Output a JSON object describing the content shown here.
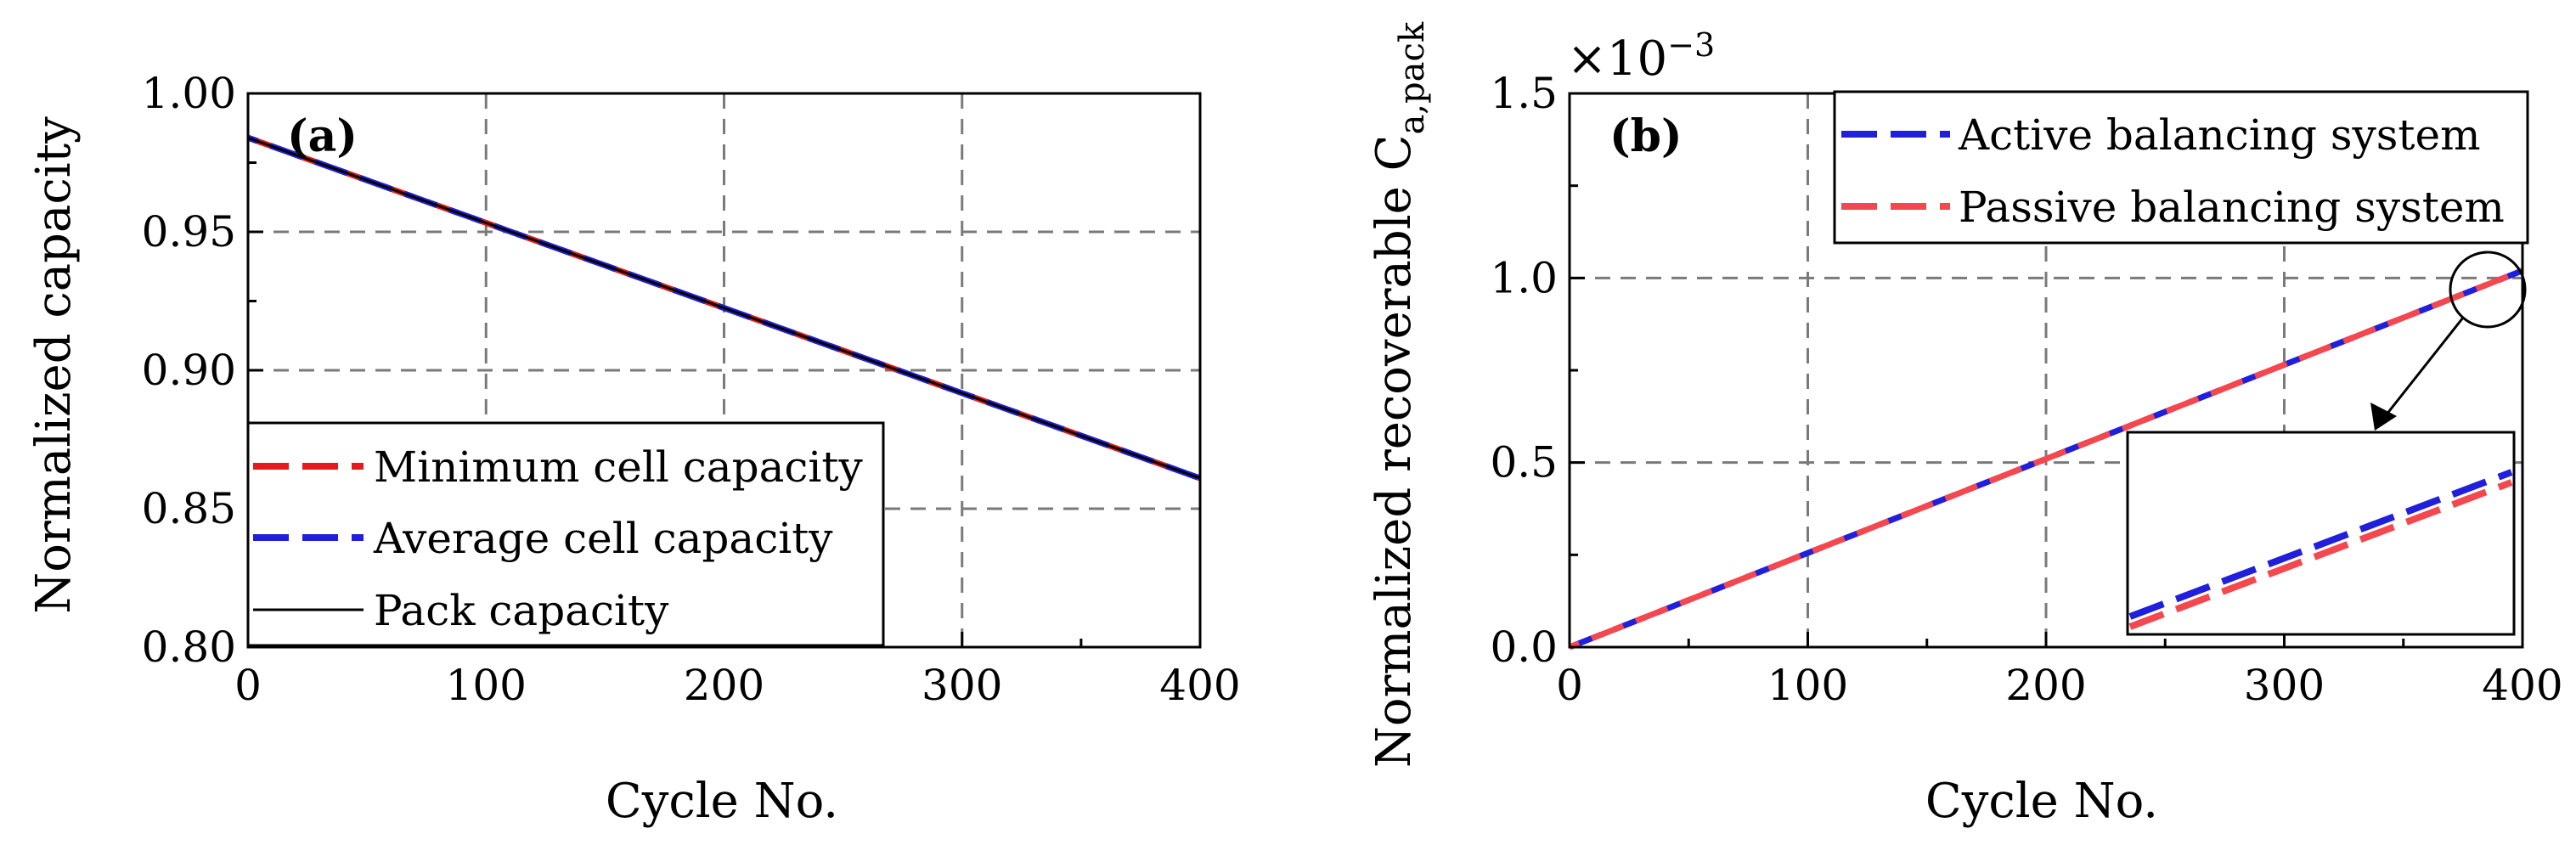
{
  "colors": {
    "red": "#e41a1c",
    "blue": "#1f1fdc",
    "pink": "#f4474e",
    "black": "#000000"
  },
  "chart_data": [
    {
      "type": "line",
      "panel_label": "(a)",
      "panel_letter": "a",
      "xlabel": "Cycle No.",
      "ylabel": "Normalized capacity",
      "xlim": [
        0,
        400
      ],
      "ylim": [
        0.8,
        1.0
      ],
      "xticks": [
        "0",
        "100",
        "200",
        "300",
        "400"
      ],
      "yticks": [
        "0.80",
        "0.85",
        "0.90",
        "0.95",
        "1.00"
      ],
      "grid": true,
      "legend_position": "bottom-left",
      "x": [
        0,
        400
      ],
      "series": [
        {
          "name": "Minimum cell capacity",
          "style": "dashed",
          "color": "red",
          "values": [
            0.984,
            0.861
          ]
        },
        {
          "name": "Average cell capacity",
          "style": "dashed",
          "color": "blue",
          "values": [
            0.984,
            0.861
          ]
        },
        {
          "name": "Pack capacity",
          "style": "solid",
          "color": "black",
          "values": [
            0.984,
            0.861
          ]
        }
      ]
    },
    {
      "type": "line",
      "panel_label": "(b)",
      "panel_letter": "b",
      "xlabel": "Cycle No.",
      "ylabel": "Normalized recoverable C",
      "ylabel_subscript": "a,pack",
      "multiplier_base": "×10",
      "multiplier_exp": "−3",
      "xlim": [
        0,
        400
      ],
      "ylim": [
        0.0,
        1.5
      ],
      "xticks": [
        "0",
        "100",
        "200",
        "300",
        "400"
      ],
      "yticks": [
        "0.0",
        "0.5",
        "1.0",
        "1.5"
      ],
      "grid": true,
      "legend_position": "top-right",
      "x": [
        0,
        400
      ],
      "series": [
        {
          "name": "Active balancing system",
          "style": "dashed",
          "color": "blue",
          "values": [
            0.0,
            1.02
          ]
        },
        {
          "name": "Passive balancing system",
          "style": "dashed",
          "color": "pink",
          "values": [
            0.0,
            1.02
          ]
        }
      ],
      "inset": {
        "annotation": "zoom near cycle 390"
      }
    }
  ]
}
